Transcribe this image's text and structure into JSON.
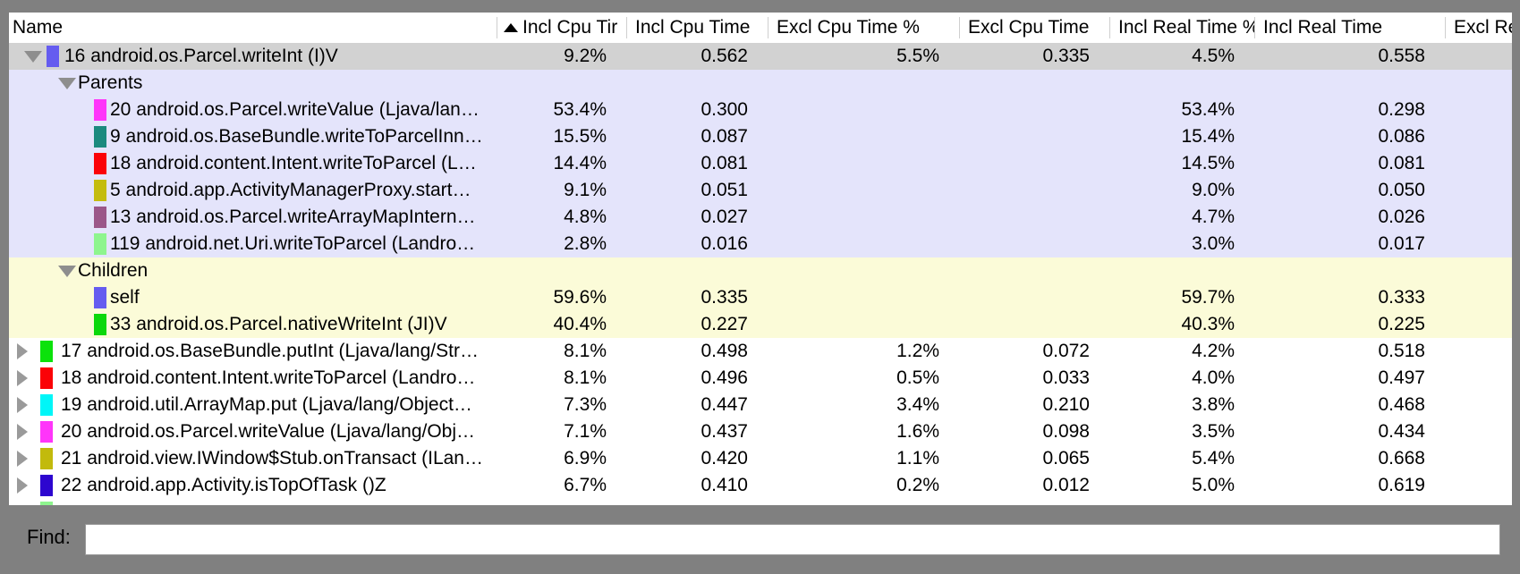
{
  "window": {
    "frame_color": "#808080",
    "selected_row_color": "#d2d2d2",
    "parents_section_color": "#e4e4fb",
    "children_section_color": "#fbfbd8"
  },
  "find": {
    "label": "Find:",
    "value": ""
  },
  "table": {
    "columns": [
      {
        "id": "name",
        "label": "Name"
      },
      {
        "id": "incl_cpu_pct",
        "label": "Incl Cpu Tir",
        "sorted": "asc"
      },
      {
        "id": "incl_cpu",
        "label": "Incl Cpu Time"
      },
      {
        "id": "excl_cpu_pct",
        "label": "Excl Cpu Time %"
      },
      {
        "id": "excl_cpu",
        "label": "Excl Cpu Time"
      },
      {
        "id": "incl_real_pct",
        "label": "Incl Real Time %"
      },
      {
        "id": "incl_real",
        "label": "Incl Real Time"
      },
      {
        "id": "excl_real",
        "label": "Excl Real"
      }
    ],
    "rows": [
      {
        "kind": "top",
        "state": "expanded",
        "bg": "selected",
        "chip": "#655cf0",
        "name": "16 android.os.Parcel.writeInt (I)V",
        "values": [
          "9.2%",
          "0.562",
          "5.5%",
          "0.335",
          "4.5%",
          "0.558"
        ]
      },
      {
        "kind": "section",
        "bg": "parents",
        "name": "Parents",
        "values": [
          "",
          "",
          "",
          "",
          "",
          ""
        ]
      },
      {
        "kind": "nested",
        "bg": "parents",
        "chip": "#ff35fa",
        "name": "20 android.os.Parcel.writeValue (Ljava/lan…",
        "values": [
          "53.4%",
          "0.300",
          "",
          "",
          "53.4%",
          "0.298"
        ]
      },
      {
        "kind": "nested",
        "bg": "parents",
        "chip": "#1b8a7e",
        "name": "9 android.os.BaseBundle.writeToParcelInn…",
        "values": [
          "15.5%",
          "0.087",
          "",
          "",
          "15.4%",
          "0.086"
        ]
      },
      {
        "kind": "nested",
        "bg": "parents",
        "chip": "#fb0207",
        "name": "18 android.content.Intent.writeToParcel (L…",
        "values": [
          "14.4%",
          "0.081",
          "",
          "",
          "14.5%",
          "0.081"
        ]
      },
      {
        "kind": "nested",
        "bg": "parents",
        "chip": "#c4bc0e",
        "name": "5 android.app.ActivityManagerProxy.start…",
        "values": [
          "9.1%",
          "0.051",
          "",
          "",
          "9.0%",
          "0.050"
        ]
      },
      {
        "kind": "nested",
        "bg": "parents",
        "chip": "#9b5789",
        "name": "13 android.os.Parcel.writeArrayMapIntern…",
        "values": [
          "4.8%",
          "0.027",
          "",
          "",
          "4.7%",
          "0.026"
        ]
      },
      {
        "kind": "nested",
        "bg": "parents",
        "chip": "#8ef58e",
        "name": "119 android.net.Uri.writeToParcel (Landro…",
        "values": [
          "2.8%",
          "0.016",
          "",
          "",
          "3.0%",
          "0.017"
        ]
      },
      {
        "kind": "section",
        "bg": "children",
        "name": "Children",
        "values": [
          "",
          "",
          "",
          "",
          "",
          ""
        ]
      },
      {
        "kind": "nested",
        "bg": "children",
        "chip": "#655cf0",
        "name": "self",
        "values": [
          "59.6%",
          "0.335",
          "",
          "",
          "59.7%",
          "0.333"
        ]
      },
      {
        "kind": "nested",
        "bg": "children",
        "chip": "#0bd80b",
        "name": "33 android.os.Parcel.nativeWriteInt (JI)V",
        "values": [
          "40.4%",
          "0.227",
          "",
          "",
          "40.3%",
          "0.225"
        ]
      },
      {
        "kind": "top",
        "state": "collapsed",
        "bg": "white",
        "chip": "#0be20b",
        "name": "17 android.os.BaseBundle.putInt (Ljava/lang/Str…",
        "values": [
          "8.1%",
          "0.498",
          "1.2%",
          "0.072",
          "4.2%",
          "0.518"
        ]
      },
      {
        "kind": "top",
        "state": "collapsed",
        "bg": "white",
        "chip": "#fb0207",
        "name": "18 android.content.Intent.writeToParcel (Landro…",
        "values": [
          "8.1%",
          "0.496",
          "0.5%",
          "0.033",
          "4.0%",
          "0.497"
        ]
      },
      {
        "kind": "top",
        "state": "collapsed",
        "bg": "white",
        "chip": "#00f6f8",
        "name": "19 android.util.ArrayMap.put (Ljava/lang/Object…",
        "values": [
          "7.3%",
          "0.447",
          "3.4%",
          "0.210",
          "3.8%",
          "0.468"
        ]
      },
      {
        "kind": "top",
        "state": "collapsed",
        "bg": "white",
        "chip": "#ff35fa",
        "name": "20 android.os.Parcel.writeValue (Ljava/lang/Obj…",
        "values": [
          "7.1%",
          "0.437",
          "1.6%",
          "0.098",
          "3.5%",
          "0.434"
        ]
      },
      {
        "kind": "top",
        "state": "collapsed",
        "bg": "white",
        "chip": "#c2ba0c",
        "name": "21 android.view.IWindow$Stub.onTransact (ILan…",
        "values": [
          "6.9%",
          "0.420",
          "1.1%",
          "0.065",
          "5.4%",
          "0.668"
        ]
      },
      {
        "kind": "top",
        "state": "collapsed",
        "bg": "white",
        "chip": "#2d06cf",
        "name": "22 android.app.Activity.isTopOfTask ()Z",
        "values": [
          "6.7%",
          "0.410",
          "0.2%",
          "0.012",
          "5.0%",
          "0.619"
        ]
      },
      {
        "kind": "sliver",
        "bg": "white",
        "chip": "#8ef58e",
        "name": "",
        "values": [
          "",
          "",
          "",
          "",
          "",
          ""
        ]
      }
    ]
  }
}
